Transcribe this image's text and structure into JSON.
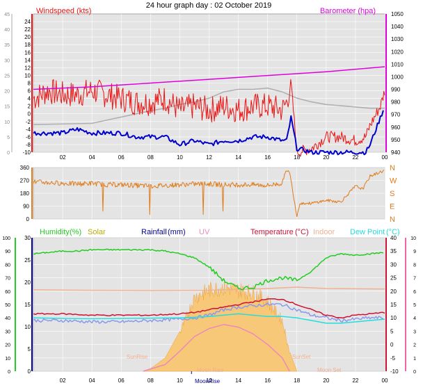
{
  "title": "24 hour graph day : 02 October 2019",
  "colors": {
    "wind": "#ee1111",
    "gust": "#ff0000",
    "avg_wind": "#0000cc",
    "barometer": "#dd00dd",
    "pressure_gray": "#b0b0b0",
    "direction": "#e07b1a",
    "humidity": "#22cc22",
    "solar": "#bbaa00",
    "rainfall": "#000099",
    "uv": "#ee88bb",
    "temperature": "#cc1133",
    "indoor": "#f0b090",
    "dew_point": "#22dddd",
    "apparent": "#8899ee",
    "solar_fill": "#f7c878",
    "axis_green": "#22cc22",
    "axis_pink": "#ee66aa",
    "plot_bg": "#e8e8e8"
  },
  "x_ticks": [
    "02",
    "04",
    "06",
    "08",
    "10",
    "12",
    "14",
    "16",
    "18",
    "20",
    "22",
    "00"
  ],
  "panel1": {
    "left_label": "Windspeed (kts)",
    "right_label": "Barometer (hpa)",
    "left_axis_outer": [
      "45",
      "40",
      "35",
      "30",
      "25",
      "20",
      "15",
      "10",
      "5",
      "0"
    ],
    "left_axis_inner": [
      "24",
      "22",
      "20",
      "18",
      "16",
      "14",
      "12",
      "10",
      "8",
      "6",
      "4",
      "2",
      "0",
      "-2",
      "-4",
      "-6",
      "-8",
      "-10"
    ],
    "right_axis": [
      "1050",
      "1040",
      "1030",
      "1020",
      "1010",
      "1000",
      "990",
      "980",
      "970",
      "960",
      "950",
      "940"
    ],
    "right_axis_visible": [
      "1050",
      "1040",
      "1030",
      "1020",
      "1010",
      "1000",
      "990",
      "980",
      "970",
      "960",
      "950",
      "940"
    ]
  },
  "panel2": {
    "left_axis": [
      "360",
      "270",
      "180",
      "90",
      "0"
    ],
    "right_axis": [
      "N",
      "W",
      "S",
      "E",
      "N"
    ]
  },
  "panel3": {
    "legend": {
      "humidity": "Humidity",
      "humidity_unit": "(%)",
      "solar": "Solar",
      "rainfall": "Rainfall",
      "rainfall_unit": "(mm)",
      "uv": "UV",
      "temperature": "Temperature",
      "temperature_unit": "(°C)",
      "indoor": "Indoor",
      "dew_point": "Dew Point",
      "dew_point_unit": "(°C)"
    },
    "axis_humidity": [
      "100",
      "90",
      "80",
      "70",
      "60",
      "50",
      "40",
      "30",
      "20",
      "10",
      "0"
    ],
    "axis_rain": [
      "30",
      "25",
      "20",
      "15",
      "10",
      "5",
      "0"
    ],
    "axis_temp": [
      "40",
      "35",
      "30",
      "25",
      "20",
      "15",
      "10",
      "5",
      "0",
      "-5",
      "-10"
    ],
    "axis_uv": [
      "10",
      "9",
      "8",
      "7",
      "6",
      "5",
      "4",
      "3",
      "2",
      "1",
      "0"
    ],
    "annotations": {
      "sunrise": "SunRise",
      "sunset": "SunSet",
      "moonset": "Moon Set",
      "moonrise": "MoonRise",
      "moonrise_faint": "Moon Rise"
    }
  },
  "chart_data": [
    {
      "type": "line",
      "name": "wind-panel",
      "x_unit": "hour",
      "xlim": [
        0,
        24
      ],
      "ylim_left": [
        -10,
        26
      ],
      "ylim_right": [
        940,
        1050
      ],
      "series": [
        {
          "name": "Windspeed (kts)",
          "x": [
            0,
            1,
            2,
            3,
            4,
            5,
            6,
            7,
            8,
            9,
            10,
            11,
            12,
            13,
            14,
            15,
            16,
            17,
            17.3,
            17.6,
            18,
            19,
            20,
            21,
            22,
            22.7,
            23,
            23.7,
            24
          ],
          "y": [
            4,
            6,
            5,
            5,
            6,
            5,
            4,
            3,
            3,
            4,
            1,
            2,
            1,
            2,
            1,
            2,
            2,
            1,
            3,
            8,
            -10,
            -9,
            -6,
            -6,
            -7,
            -6,
            -3,
            2,
            6
          ]
        },
        {
          "name": "Avg wind",
          "x": [
            0,
            1,
            2,
            3,
            4,
            5,
            6,
            7,
            8,
            9,
            10,
            11,
            12,
            13,
            14,
            15,
            16,
            17,
            17.3,
            17.6,
            18,
            19,
            20,
            21,
            22,
            22.7,
            23,
            23.7,
            24
          ],
          "y": [
            -5,
            -5,
            -5,
            -4,
            -5,
            -5,
            -5,
            -6,
            -6,
            -6,
            -8,
            -7,
            -8,
            -7,
            -7,
            -6,
            -6,
            -7,
            -7,
            -1,
            -9,
            -10,
            -10,
            -10,
            -10,
            -10,
            -8,
            -1,
            2
          ]
        },
        {
          "name": "Barometer (hpa)",
          "x": [
            0,
            4,
            8,
            12,
            16,
            20,
            24
          ],
          "y": [
            990,
            992,
            995,
            998,
            1001,
            1004,
            1008
          ]
        },
        {
          "name": "Pressure gray",
          "x": [
            0,
            4,
            8,
            9,
            10,
            11,
            12,
            13,
            14,
            15,
            16,
            17,
            18,
            19,
            20,
            21,
            22,
            23,
            24
          ],
          "y": [
            962,
            963,
            973,
            975,
            978,
            980,
            983,
            988,
            990,
            990,
            991,
            988,
            983,
            980,
            978,
            977,
            976,
            975,
            975
          ]
        }
      ]
    },
    {
      "type": "line",
      "name": "direction-panel",
      "x_unit": "hour",
      "xlim": [
        0,
        24
      ],
      "ylim": [
        0,
        360
      ],
      "series": [
        {
          "name": "Wind direction",
          "x": [
            0,
            1,
            2,
            3,
            4,
            5,
            6,
            7,
            8,
            9,
            10,
            11,
            12,
            13,
            14,
            15,
            16,
            17,
            17.2,
            17.5,
            18,
            18.2,
            19,
            20,
            21,
            22,
            22.5,
            23,
            24
          ],
          "y": [
            260,
            255,
            250,
            245,
            250,
            240,
            240,
            235,
            230,
            235,
            240,
            245,
            245,
            240,
            240,
            240,
            235,
            250,
            330,
            330,
            20,
            110,
            110,
            130,
            120,
            230,
            210,
            300,
            340
          ]
        }
      ]
    },
    {
      "type": "line",
      "name": "climate-panel",
      "x_unit": "hour",
      "xlim": [
        0,
        24
      ],
      "ylim_humidity": [
        0,
        100
      ],
      "ylim_temp": [
        -10,
        40
      ],
      "ylim_uv": [
        0,
        10
      ],
      "series": [
        {
          "name": "Humidity (%)",
          "x": [
            0,
            1,
            2,
            3,
            4,
            5,
            6,
            7,
            8,
            9,
            10,
            11,
            12,
            13,
            14,
            15,
            16,
            17,
            18,
            19,
            20,
            21,
            22,
            23,
            24
          ],
          "y": [
            88,
            89,
            90,
            90,
            91,
            91,
            91,
            91,
            91,
            90,
            88,
            85,
            78,
            68,
            62,
            63,
            68,
            70,
            68,
            75,
            85,
            88,
            87,
            88,
            89
          ]
        },
        {
          "name": "Temperature (°C)",
          "x": [
            0,
            2,
            4,
            6,
            8,
            10,
            11,
            12,
            13,
            14,
            15,
            16,
            17,
            18,
            19,
            20,
            21,
            22,
            23,
            24
          ],
          "y": [
            11.5,
            11.5,
            11,
            11,
            11,
            11.5,
            12,
            13,
            14,
            15,
            16,
            17,
            17,
            15,
            13,
            11,
            10,
            11,
            11.5,
            12
          ]
        },
        {
          "name": "Apparent",
          "x": [
            0,
            2,
            4,
            6,
            8,
            10,
            11,
            12,
            13,
            14,
            15,
            16,
            17,
            18,
            19,
            20,
            21,
            22,
            23,
            24
          ],
          "y": [
            9,
            9,
            8.5,
            8.5,
            9,
            9.5,
            10,
            11,
            13,
            14,
            14.5,
            15,
            15,
            13,
            11,
            10,
            9,
            9.5,
            10,
            10
          ]
        },
        {
          "name": "Dew Point (°C)",
          "x": [
            0,
            2,
            4,
            6,
            8,
            10,
            11,
            12,
            13,
            14,
            15,
            16,
            17,
            18,
            19,
            20,
            21,
            22,
            23,
            24
          ],
          "y": [
            10,
            9.8,
            9.7,
            9.8,
            9.9,
            10,
            10.2,
            10.5,
            11,
            11.5,
            11,
            10.5,
            10.5,
            10,
            9,
            8,
            8,
            8.5,
            9,
            9.5
          ]
        },
        {
          "name": "Indoor",
          "x": [
            0,
            4,
            8,
            12,
            16,
            18,
            20,
            24
          ],
          "y": [
            20.5,
            20.3,
            20.2,
            20.3,
            21,
            21.5,
            21,
            20.8
          ]
        },
        {
          "name": "Solar",
          "x": [
            7.5,
            8,
            9,
            10,
            11,
            12,
            13,
            14,
            15,
            16,
            17,
            17.5,
            18
          ],
          "y": [
            0,
            0.2,
            1,
            3,
            5.8,
            6.4,
            6.6,
            6.4,
            6.2,
            5.5,
            4,
            1.5,
            0
          ]
        },
        {
          "name": "UV",
          "x": [
            7.5,
            9,
            10,
            11,
            12,
            13,
            14,
            15,
            16,
            17,
            17.5
          ],
          "y": [
            0,
            0.5,
            1.5,
            2.6,
            3.2,
            3.5,
            3.3,
            2.8,
            2,
            1,
            0
          ]
        }
      ]
    }
  ]
}
